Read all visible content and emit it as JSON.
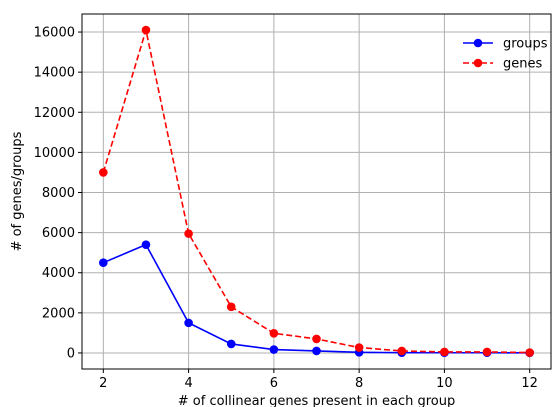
{
  "chart_data": {
    "type": "line",
    "x": [
      2,
      3,
      4,
      5,
      6,
      7,
      8,
      9,
      10,
      11,
      12
    ],
    "series": [
      {
        "name": "groups",
        "color": "#0000ff",
        "line_style": "solid",
        "marker": "circle",
        "values": [
          4500,
          5400,
          1500,
          450,
          170,
          100,
          30,
          15,
          10,
          10,
          5
        ]
      },
      {
        "name": "genes",
        "color": "#ff0000",
        "line_style": "dashed",
        "marker": "circle",
        "values": [
          9000,
          16100,
          5950,
          2300,
          980,
          700,
          270,
          100,
          50,
          50,
          20
        ]
      }
    ],
    "xlabel": "# of collinear genes present in each group",
    "ylabel": "# of genes/groups",
    "xlim": [
      1.5,
      12.5
    ],
    "ylim": [
      -800,
      16900
    ],
    "xticks": [
      2,
      4,
      6,
      8,
      10,
      12
    ],
    "yticks": [
      0,
      2000,
      4000,
      6000,
      8000,
      10000,
      12000,
      14000,
      16000
    ],
    "grid": true,
    "legend_position": "top-right"
  }
}
